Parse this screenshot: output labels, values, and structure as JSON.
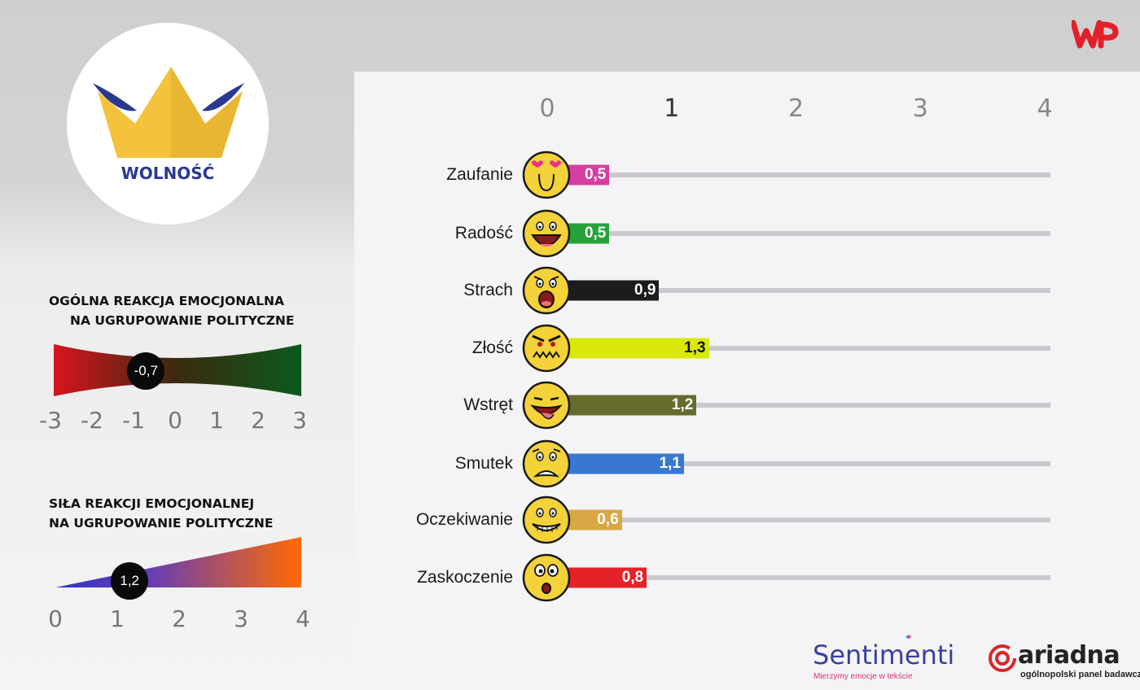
{
  "brand": {
    "party_name": "WOLNOŚĆ",
    "wp_logo": "wp-logo-icon"
  },
  "general": {
    "heading_line1": "OGÓLNA REAKCJA EMOCJONALNA",
    "heading_line2": "NA UGRUPOWANIE POLITYCZNE",
    "value": -0.7,
    "value_label": "-0,7",
    "min": -3,
    "max": 3,
    "ticks": [
      "-3",
      "-2",
      "-1",
      "0",
      "1",
      "2",
      "3"
    ],
    "colors": {
      "negative": "#d7141e",
      "positive": "#0b5a1e"
    }
  },
  "strength": {
    "heading_line1": "SIŁA REAKCJI EMOCJONALNEJ",
    "heading_line2": "NA UGRUPOWANIE POLITYCZNE",
    "value": 1.2,
    "value_label": "1,2",
    "min": 0,
    "max": 4,
    "ticks": [
      "0",
      "1",
      "2",
      "3",
      "4"
    ],
    "colors": {
      "low": "#2f35c8",
      "high": "#ff6a00"
    }
  },
  "chart_data": {
    "type": "bar",
    "orientation": "horizontal",
    "xlim": [
      0,
      4
    ],
    "x_ticks": [
      "0",
      "1",
      "2",
      "3",
      "4"
    ],
    "categories": [
      "Zaufanie",
      "Radość",
      "Strach",
      "Złość",
      "Wstręt",
      "Smutek",
      "Oczekiwanie",
      "Zaskoczenie"
    ],
    "values": [
      0.5,
      0.5,
      0.9,
      1.3,
      1.2,
      1.1,
      0.6,
      0.8
    ],
    "value_labels": [
      "0,5",
      "0,5",
      "0,9",
      "1,3",
      "1,2",
      "1,1",
      "0,6",
      "0,8"
    ],
    "colors": [
      "#d63fa0",
      "#26a23a",
      "#1c1c1c",
      "#d9e80a",
      "#666b2e",
      "#3a78d0",
      "#d9a743",
      "#e42228"
    ],
    "label_colors": [
      "#ffffff",
      "#ffffff",
      "#ffffff",
      "#111111",
      "#ffffff",
      "#ffffff",
      "#ffffff",
      "#ffffff"
    ],
    "icons": [
      "in-love-face-icon",
      "laughing-face-icon",
      "scared-face-icon",
      "angry-face-icon",
      "disgusted-face-icon",
      "sad-face-icon",
      "expectant-face-icon",
      "surprised-face-icon"
    ]
  },
  "footer": {
    "sentimenti_name": "Sentimenti",
    "sentimenti_tagline": "Mierzymy emocje w tekście",
    "ariadna_name": "ariadna",
    "ariadna_tagline": "ogólnopolski panel badawczy"
  }
}
